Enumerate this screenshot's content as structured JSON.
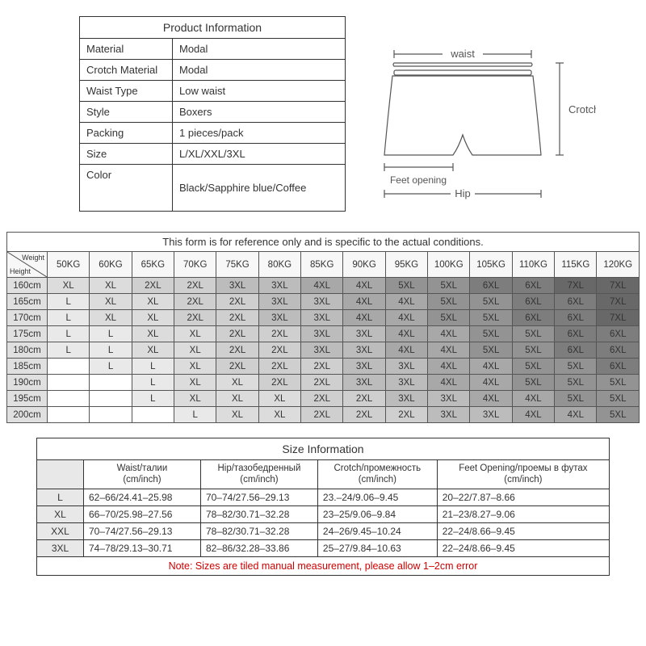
{
  "product_info": {
    "title": "Product Information",
    "rows": [
      {
        "label": "Material",
        "value": "Modal"
      },
      {
        "label": "Crotch Material",
        "value": "Modal"
      },
      {
        "label": "Waist Type",
        "value": "Low waist"
      },
      {
        "label": "Style",
        "value": "Boxers"
      },
      {
        "label": "Packing",
        "value": "1 pieces/pack"
      },
      {
        "label": "Size",
        "value": "L/XL/XXL/3XL"
      },
      {
        "label": "Color",
        "value": "Black/Sapphire blue/Coffee"
      }
    ]
  },
  "diagram_labels": {
    "waist": "waist",
    "crotch": "Crotch",
    "hip": "Hip",
    "feet": "Feet opening"
  },
  "size_chart": {
    "caption": "This form is for reference only and is specific to the actual conditions.",
    "diag_top": "Weight",
    "diag_bottom": "Height",
    "weights": [
      "50KG",
      "60KG",
      "65KG",
      "70KG",
      "75KG",
      "80KG",
      "85KG",
      "90KG",
      "95KG",
      "100KG",
      "105KG",
      "110KG",
      "115KG",
      "120KG"
    ],
    "heights": [
      "160cm",
      "165cm",
      "170cm",
      "175cm",
      "180cm",
      "185cm",
      "190cm",
      "195cm",
      "200cm"
    ],
    "cells": [
      [
        "XL",
        "XL",
        "2XL",
        "2XL",
        "3XL",
        "3XL",
        "4XL",
        "4XL",
        "5XL",
        "5XL",
        "6XL",
        "6XL",
        "7XL",
        "7XL"
      ],
      [
        "L",
        "XL",
        "XL",
        "2XL",
        "2XL",
        "3XL",
        "3XL",
        "4XL",
        "4XL",
        "5XL",
        "5XL",
        "6XL",
        "6XL",
        "7XL"
      ],
      [
        "L",
        "XL",
        "XL",
        "2XL",
        "2XL",
        "3XL",
        "3XL",
        "4XL",
        "4XL",
        "5XL",
        "5XL",
        "6XL",
        "6XL",
        "7XL"
      ],
      [
        "L",
        "L",
        "XL",
        "XL",
        "2XL",
        "2XL",
        "3XL",
        "3XL",
        "4XL",
        "4XL",
        "5XL",
        "5XL",
        "6XL",
        "6XL"
      ],
      [
        "L",
        "L",
        "XL",
        "XL",
        "2XL",
        "2XL",
        "3XL",
        "3XL",
        "4XL",
        "4XL",
        "5XL",
        "5XL",
        "6XL",
        "6XL"
      ],
      [
        "",
        "L",
        "L",
        "XL",
        "2XL",
        "2XL",
        "2XL",
        "3XL",
        "3XL",
        "4XL",
        "4XL",
        "5XL",
        "5XL",
        "6XL"
      ],
      [
        "",
        "",
        "L",
        "XL",
        "XL",
        "2XL",
        "2XL",
        "3XL",
        "3XL",
        "4XL",
        "4XL",
        "5XL",
        "5XL",
        "5XL"
      ],
      [
        "",
        "",
        "L",
        "XL",
        "XL",
        "XL",
        "2XL",
        "2XL",
        "3XL",
        "3XL",
        "4XL",
        "4XL",
        "5XL",
        "5XL"
      ],
      [
        "",
        "",
        "",
        "L",
        "XL",
        "XL",
        "2XL",
        "2XL",
        "2XL",
        "3XL",
        "3XL",
        "4XL",
        "4XL",
        "5XL"
      ]
    ],
    "shade_map": {
      "": "#ffffff",
      "L": "#e9e9e9",
      "XL": "#dcdcdc",
      "2XL": "#cfcfcf",
      "3XL": "#bcbcbc",
      "4XL": "#a8a8a8",
      "5XL": "#939393",
      "6XL": "#7d7d7d",
      "7XL": "#686868"
    },
    "header_bg": "#f7f7f7",
    "rowhead_bg": "#e0e0e0"
  },
  "size_info": {
    "title": "Size Information",
    "headers": [
      "Waist/талии\n(cm/inch)",
      "Hip/тазобедренный\n(cm/inch)",
      "Crotch/промежность\n(cm/inch)",
      "Feet Opening/проемы в футах\n(cm/inch)"
    ],
    "rows": [
      {
        "size": "L",
        "vals": [
          "62–66/24.41–25.98",
          "70–74/27.56–29.13",
          "23.–24/9.06–9.45",
          "20–22/7.87–8.66"
        ]
      },
      {
        "size": "XL",
        "vals": [
          "66–70/25.98–27.56",
          "78–82/30.71–32.28",
          "23–25/9.06–9.84",
          "21–23/8.27–9.06"
        ]
      },
      {
        "size": "XXL",
        "vals": [
          "70–74/27.56–29.13",
          "78–82/30.71–32.28",
          "24–26/9.45–10.24",
          "22–24/8.66–9.45"
        ]
      },
      {
        "size": "3XL",
        "vals": [
          "74–78/29.13–30.71",
          "82–86/32.28–33.86",
          "25–27/9.84–10.63",
          "22–24/8.66–9.45"
        ]
      }
    ],
    "note": "Note:  Sizes are tiled manual measurement, please allow 1–2cm error"
  }
}
